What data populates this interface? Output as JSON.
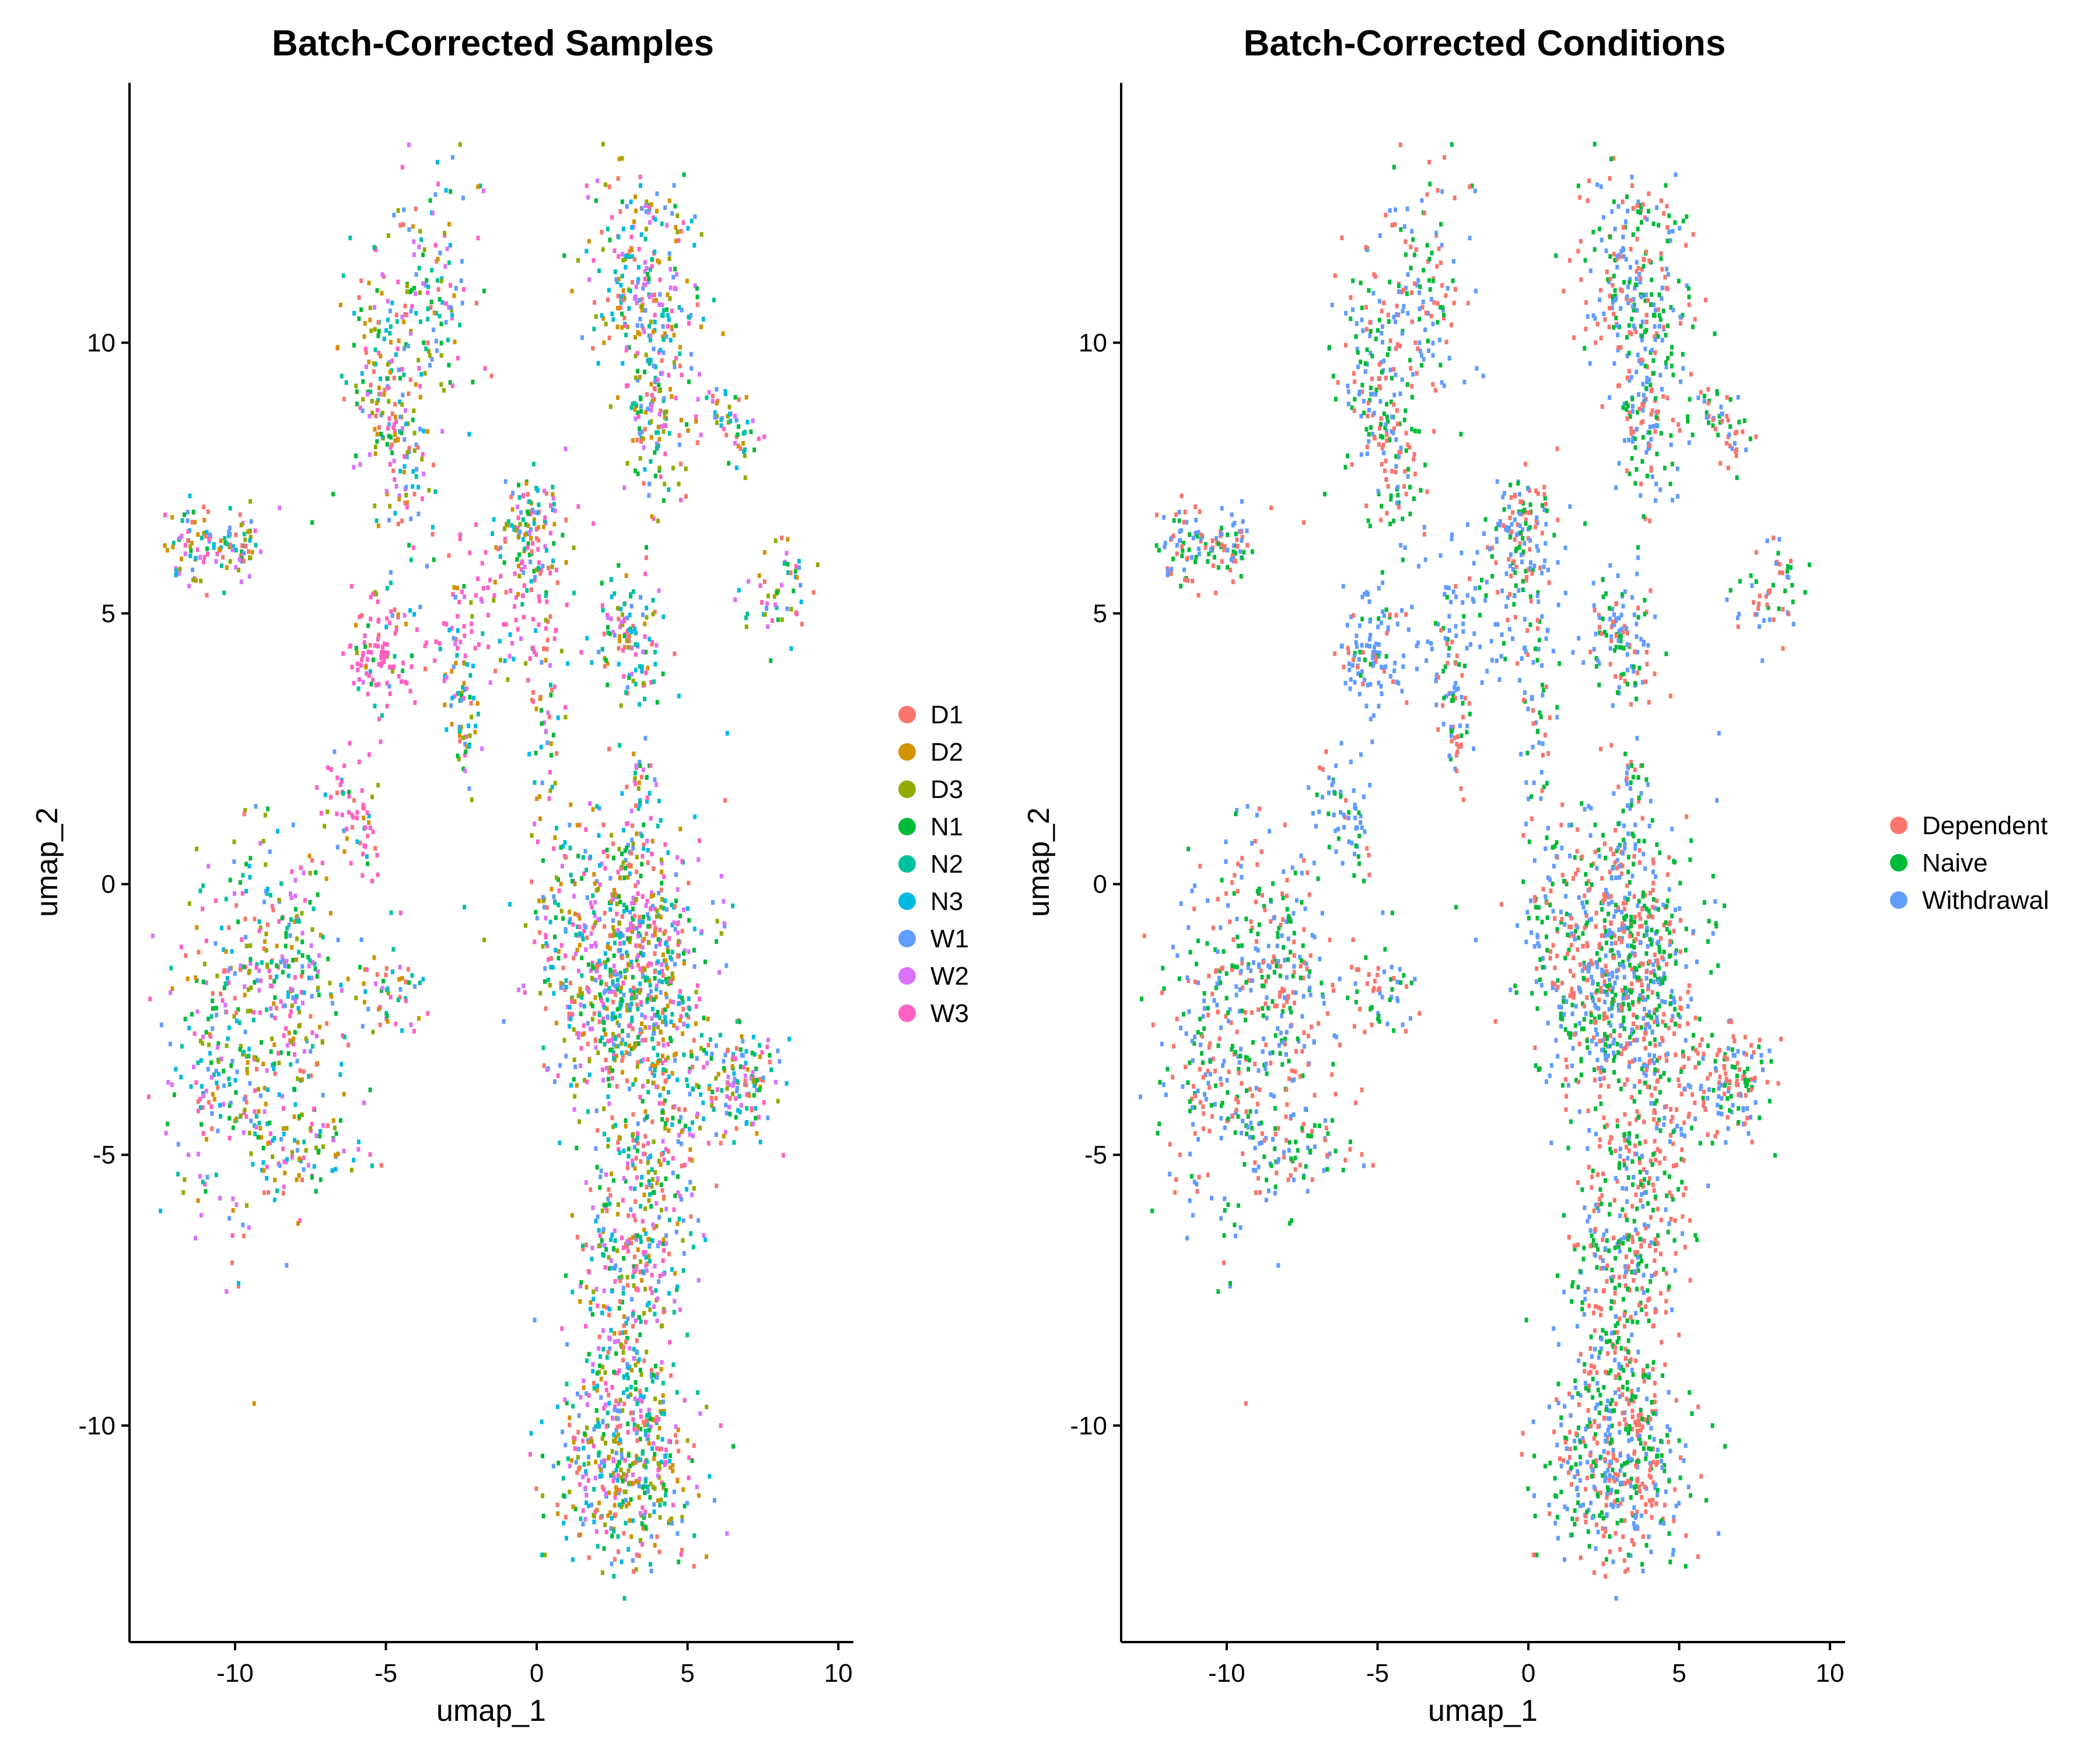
{
  "chart_data": [
    {
      "type": "scatter",
      "title": "Batch-Corrected Samples",
      "xlabel": "umap_1",
      "ylabel": "umap_2",
      "xlim": [
        -13.5,
        10.5
      ],
      "ylim": [
        -14,
        14.8
      ],
      "xticks": [
        -10,
        -5,
        0,
        5,
        10
      ],
      "xtick_labels": [
        "-10",
        "-5",
        "0",
        "5",
        "10"
      ],
      "yticks": [
        -10,
        -5,
        0,
        5,
        10
      ],
      "ytick_labels": [
        "-10",
        "-5",
        "0",
        "5",
        "10"
      ],
      "grid": false,
      "legend_position": "right",
      "legend": [
        {
          "label": "D1",
          "color": "#F8766D"
        },
        {
          "label": "D2",
          "color": "#D39200"
        },
        {
          "label": "D3",
          "color": "#93AA00"
        },
        {
          "label": "N1",
          "color": "#00BA38"
        },
        {
          "label": "N2",
          "color": "#00C19F"
        },
        {
          "label": "N3",
          "color": "#00B9E3"
        },
        {
          "label": "W1",
          "color": "#619CFF"
        },
        {
          "label": "W2",
          "color": "#DB72FB"
        },
        {
          "label": "W3",
          "color": "#FF61C3"
        }
      ]
    },
    {
      "type": "scatter",
      "title": "Batch-Corrected Conditions",
      "xlabel": "umap_1",
      "ylabel": "umap_2",
      "xlim": [
        -13.5,
        10.5
      ],
      "ylim": [
        -14,
        14.8
      ],
      "xticks": [
        -10,
        -5,
        0,
        5,
        10
      ],
      "xtick_labels": [
        "-10",
        "-5",
        "0",
        "5",
        "10"
      ],
      "yticks": [
        -10,
        -5,
        0,
        5,
        10
      ],
      "ytick_labels": [
        "-10",
        "-5",
        "0",
        "5",
        "10"
      ],
      "grid": false,
      "legend_position": "right",
      "legend": [
        {
          "label": "Dependent",
          "color": "#F8766D"
        },
        {
          "label": "Naive",
          "color": "#00BA38"
        },
        {
          "label": "Withdrawal",
          "color": "#619CFF"
        }
      ]
    }
  ]
}
